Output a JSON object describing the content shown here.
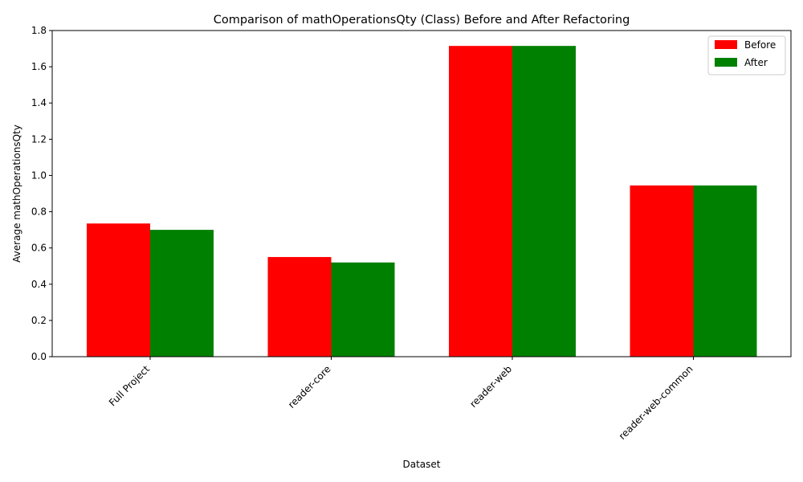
{
  "chart_data": {
    "type": "bar",
    "title": "Comparison of mathOperationsQty (Class) Before and After Refactoring",
    "xlabel": "Dataset",
    "ylabel": "Average mathOperationsQty",
    "categories": [
      "Full Project",
      "reader-core",
      "reader-web",
      "reader-web-common"
    ],
    "series": [
      {
        "name": "Before",
        "color": "#ff0000",
        "values": [
          0.735,
          0.55,
          1.715,
          0.945
        ]
      },
      {
        "name": "After",
        "color": "#008000",
        "values": [
          0.7,
          0.52,
          1.715,
          0.945
        ]
      }
    ],
    "ylim": [
      0,
      1.8
    ],
    "yticks": [
      0.0,
      0.2,
      0.4,
      0.6,
      0.8,
      1.0,
      1.2,
      1.4,
      1.6,
      1.8
    ],
    "ytick_labels": [
      "0.0",
      "0.2",
      "0.4",
      "0.6",
      "0.8",
      "1.0",
      "1.2",
      "1.4",
      "1.6",
      "1.8"
    ],
    "grid": false,
    "legend_position": "top-right"
  }
}
